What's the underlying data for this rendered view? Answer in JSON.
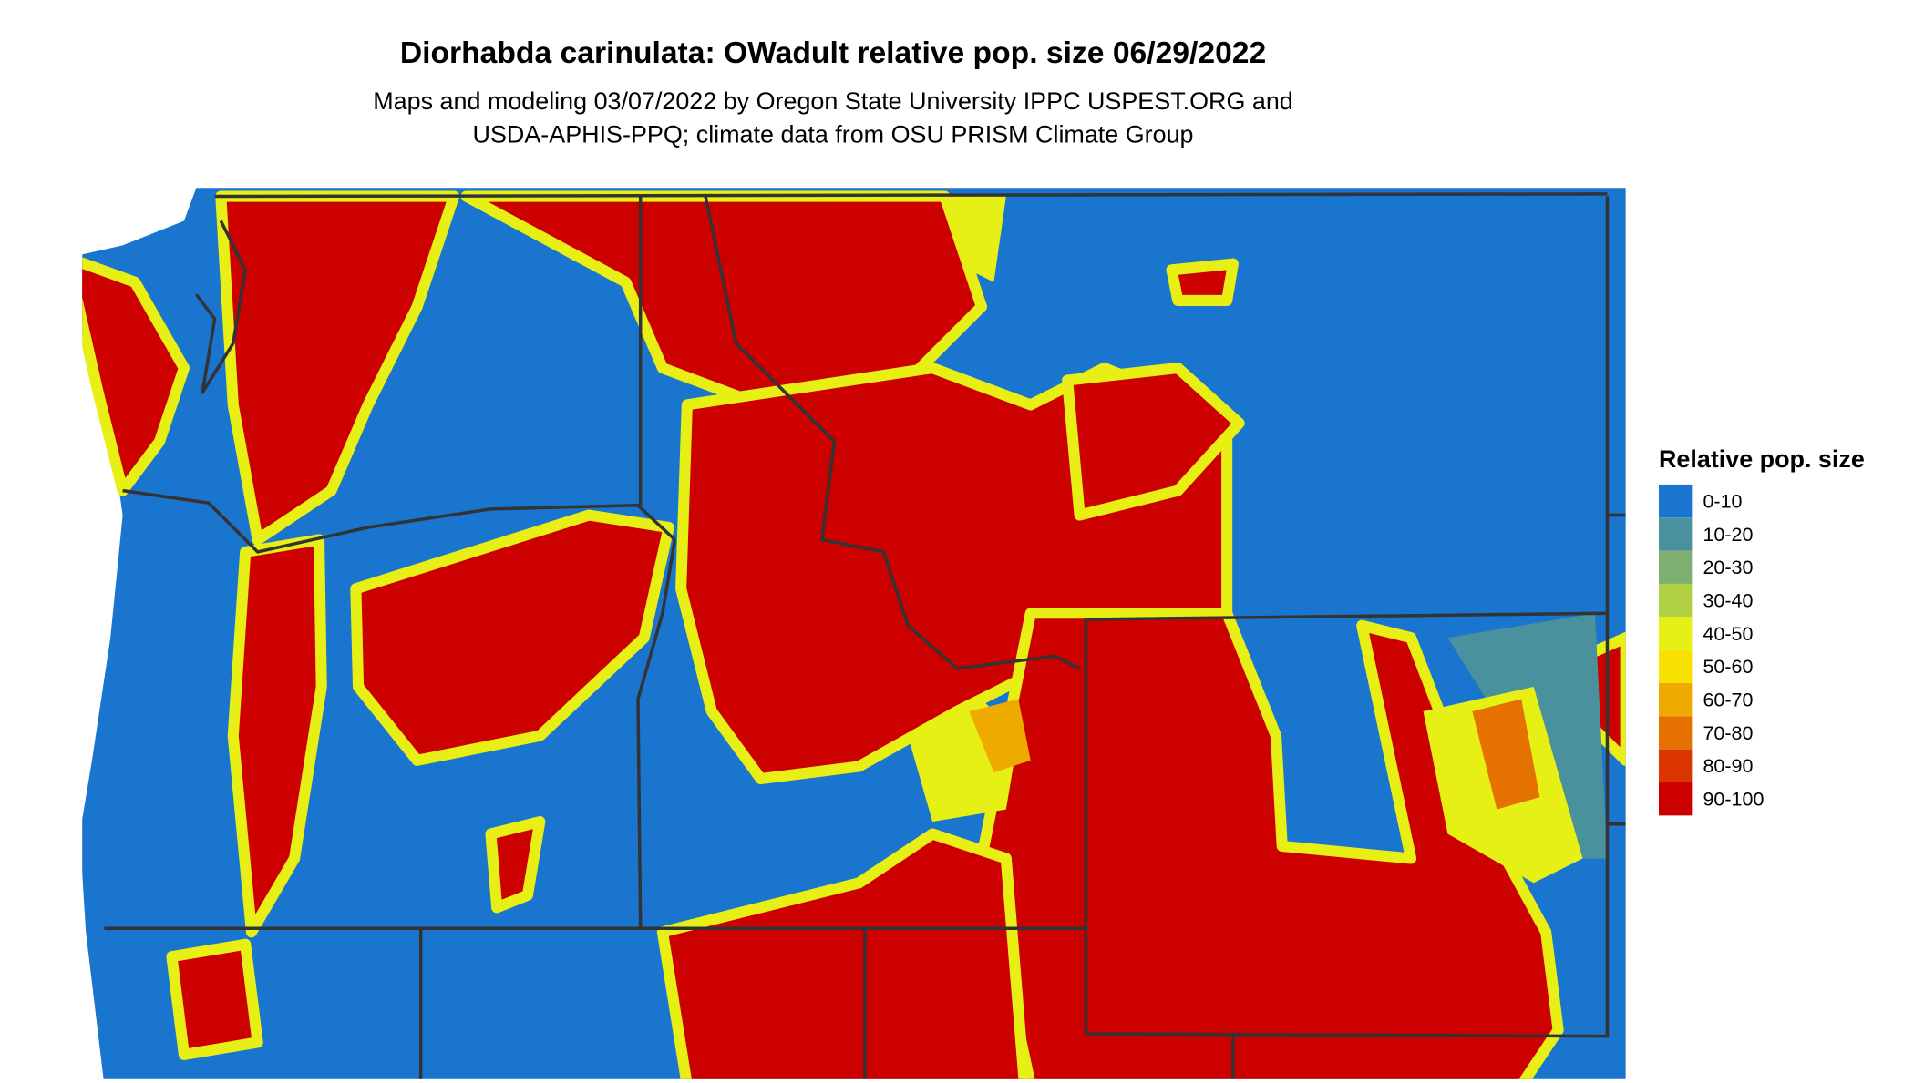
{
  "title": "Diorhabda carinulata: OWadult relative pop. size 06/29/2022",
  "subtitle_lines": [
    "Maps and modeling 03/07/2022 by Oregon State University IPPC USPEST.ORG and",
    "USDA-APHIS-PPQ; climate data from OSU PRISM Climate Group"
  ],
  "legend": {
    "title": "Relative pop. size",
    "items": [
      {
        "label": "0-10",
        "color": "#1A75CF"
      },
      {
        "label": "10-20",
        "color": "#4A919E"
      },
      {
        "label": "20-30",
        "color": "#7FAF70"
      },
      {
        "label": "30-40",
        "color": "#B2D043"
      },
      {
        "label": "40-50",
        "color": "#E6F014"
      },
      {
        "label": "50-60",
        "color": "#F8E100"
      },
      {
        "label": "60-70",
        "color": "#EFAA00"
      },
      {
        "label": "70-80",
        "color": "#E57200"
      },
      {
        "label": "80-90",
        "color": "#DB3500"
      },
      {
        "label": "90-100",
        "color": "#CD0000"
      }
    ]
  }
}
